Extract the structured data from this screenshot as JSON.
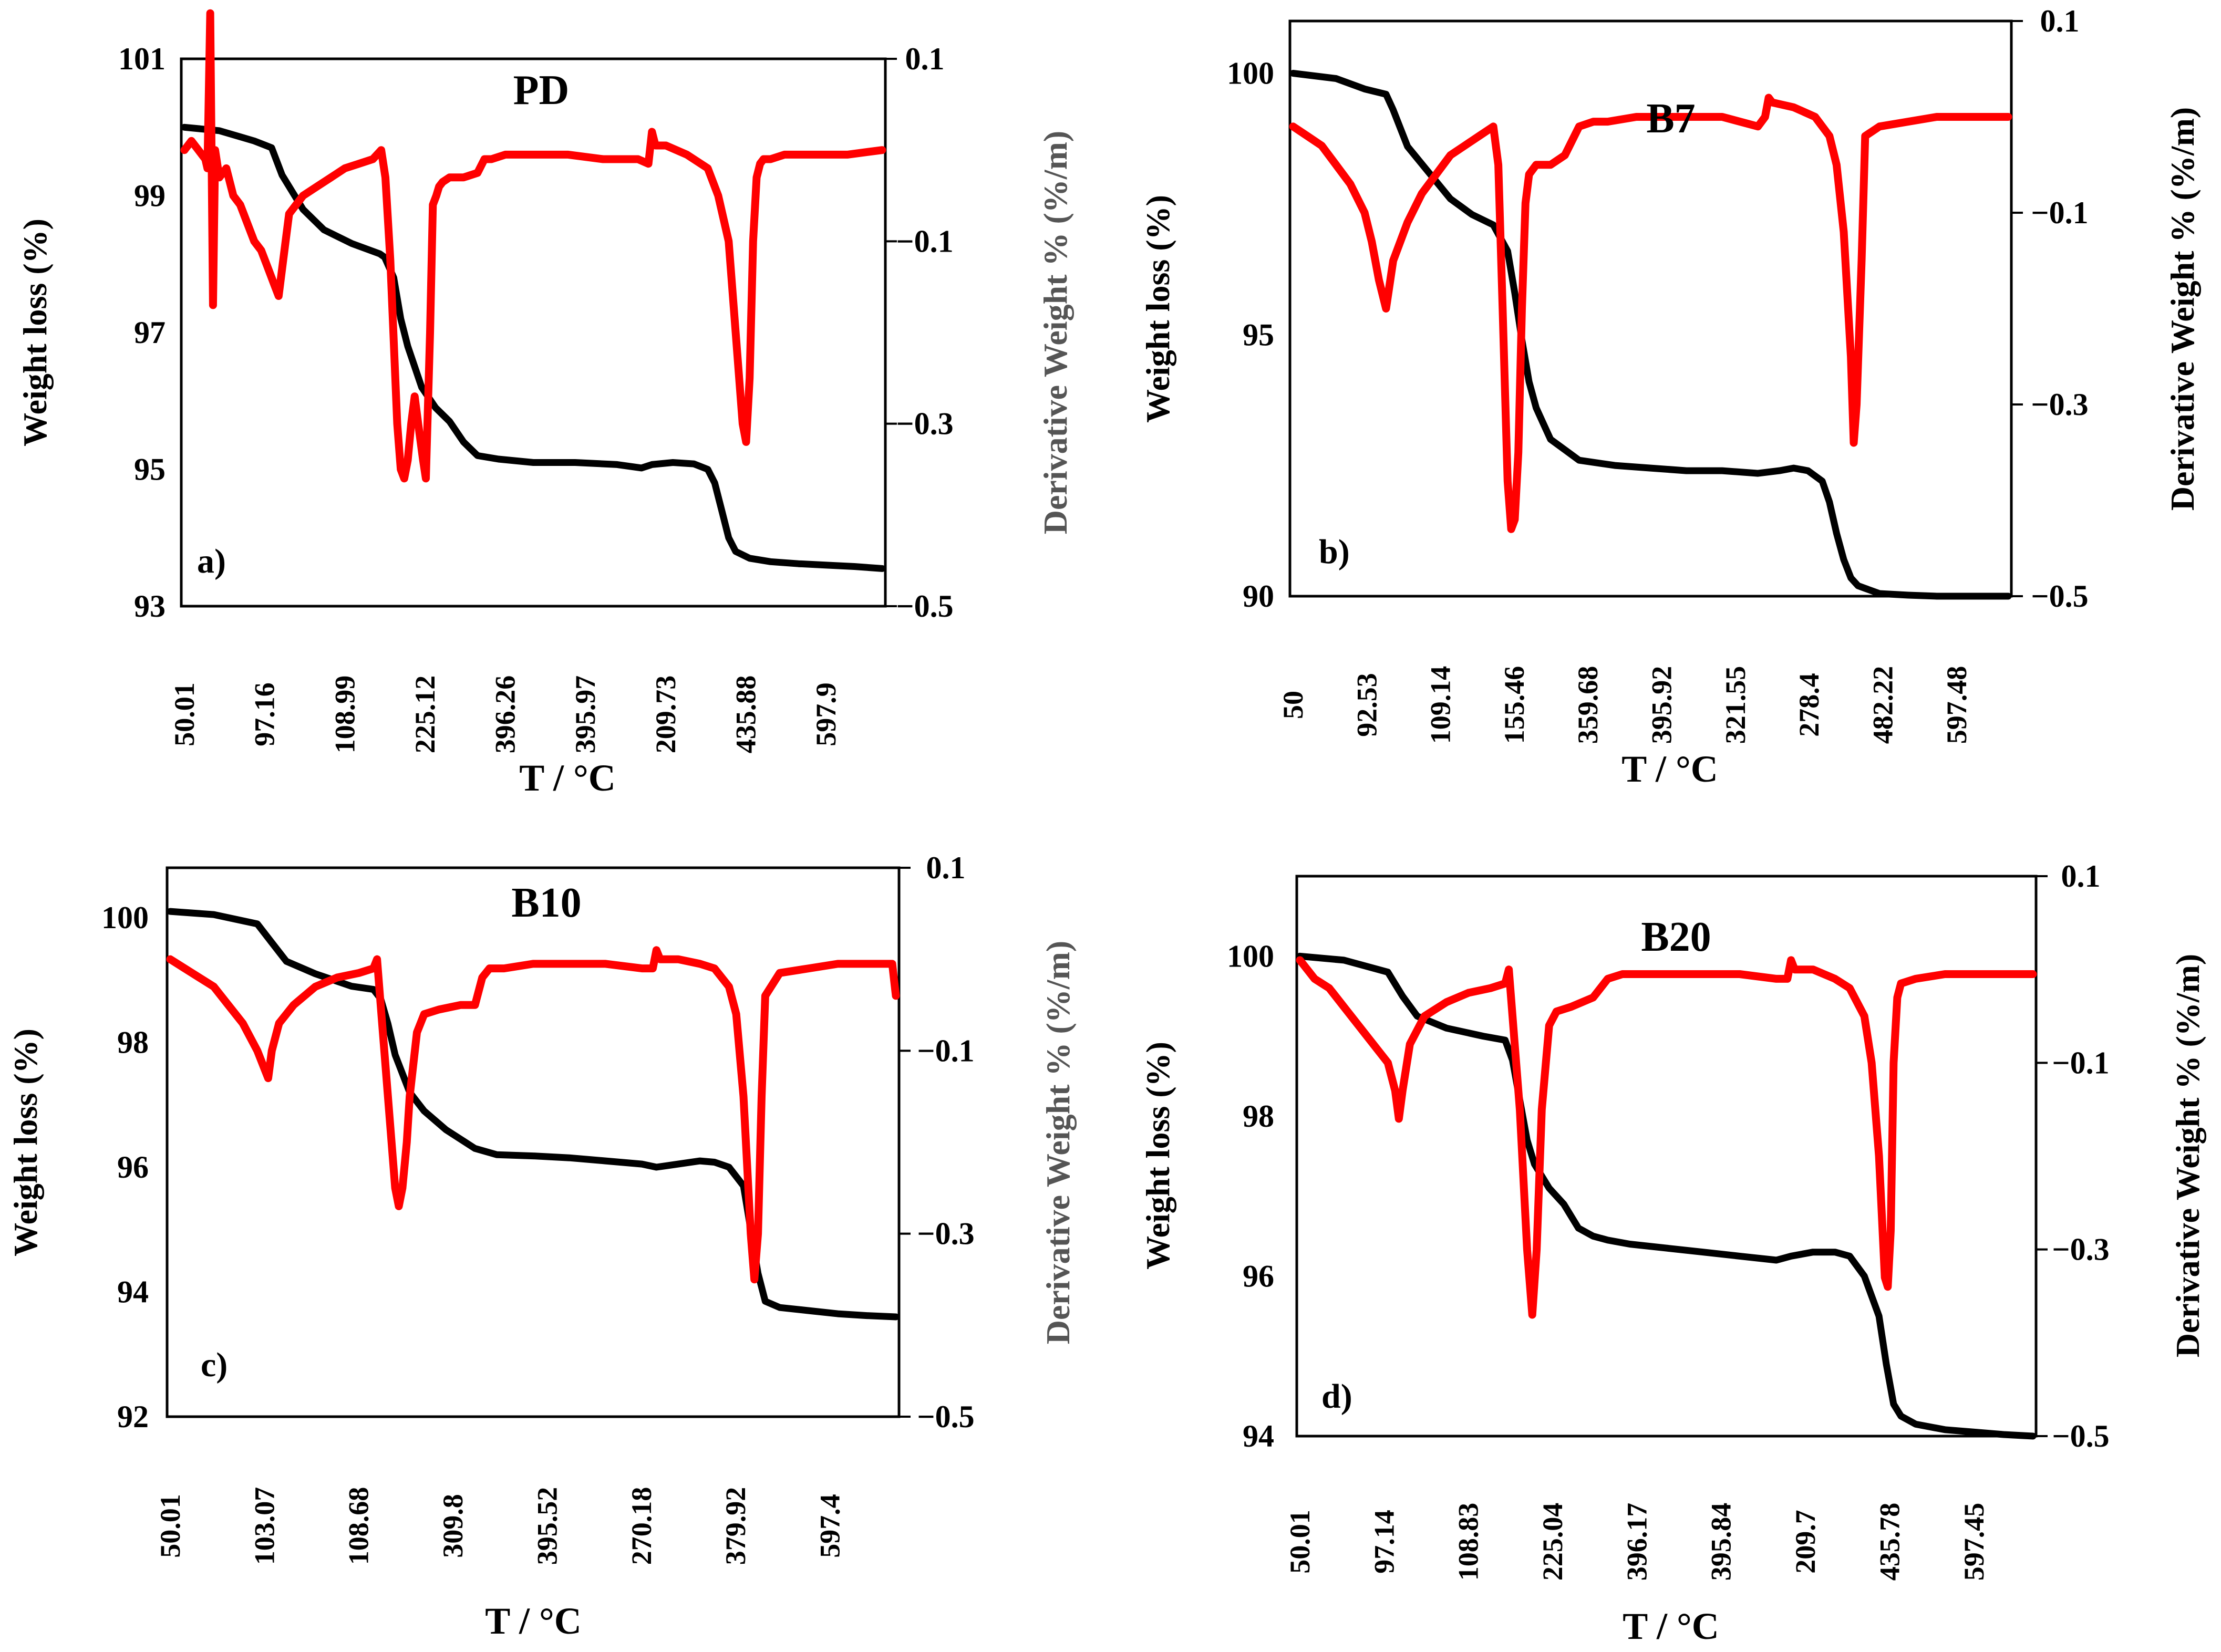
{
  "colors": {
    "weight_loss_series": "#000000",
    "derivative_series": "#ff0000",
    "frame": "#000000",
    "right_axis_title_gray": "#555555"
  },
  "chart_data": [
    {
      "type": "line",
      "panel": "a)",
      "title": "PD",
      "xlabel": "T / °C",
      "ylabel": "Weight loss (%)",
      "y2label": "Derivative Weight % (%/m)",
      "y2label_color": "gray",
      "x_tick_labels": [
        "50.01",
        "97.16",
        "108.99",
        "225.12",
        "396.26",
        "395.97",
        "209.73",
        "435.88",
        "597.9"
      ],
      "ylim": [
        93,
        101
      ],
      "y_ticks": [
        101,
        99,
        97,
        95,
        93
      ],
      "y2lim": [
        -0.5,
        0.1
      ],
      "y2_ticks": [
        "0.1",
        "−0.1",
        "−0.3",
        "−0.5"
      ],
      "x_range": [
        0,
        100
      ],
      "series": [
        {
          "name": "Weight loss",
          "axis": "left",
          "color": "#000000",
          "x": [
            0,
            5,
            10,
            12.5,
            14,
            17,
            20,
            24,
            28,
            28.7,
            30,
            31,
            32,
            34,
            36,
            38,
            40,
            42,
            45,
            50,
            56,
            62,
            65.5,
            67,
            70,
            73,
            75,
            76,
            77,
            78,
            79,
            81,
            84,
            88,
            92,
            96,
            100
          ],
          "y": [
            100,
            99.95,
            99.8,
            99.7,
            99.3,
            98.8,
            98.5,
            98.3,
            98.15,
            98.1,
            97.8,
            97.2,
            96.8,
            96.2,
            95.9,
            95.7,
            95.4,
            95.2,
            95.15,
            95.1,
            95.1,
            95.07,
            95.02,
            95.07,
            95.1,
            95.08,
            95.0,
            94.8,
            94.4,
            94.0,
            93.8,
            93.7,
            93.65,
            93.62,
            93.6,
            93.58,
            93.55
          ]
        },
        {
          "name": "Derivative weight",
          "axis": "right",
          "color": "#ff0000",
          "x": [
            0,
            1,
            2,
            3,
            3.3,
            3.7,
            4.1,
            4.4,
            5,
            6,
            7,
            8,
            9,
            10,
            11,
            12,
            13,
            13.5,
            14,
            15,
            17,
            19,
            21,
            23,
            25,
            27,
            28.2,
            28.8,
            29.5,
            30.5,
            31,
            31.5,
            32,
            32.5,
            33,
            33.5,
            34.2,
            34.6,
            35.2,
            35.6,
            36.1,
            36.5,
            37,
            38,
            40,
            42,
            43,
            44,
            46,
            50,
            55,
            60,
            65,
            66.5,
            67,
            67.5,
            69,
            72,
            75,
            76.5,
            78,
            79,
            80,
            80.5,
            81,
            81.5,
            82,
            82.5,
            83,
            84,
            86,
            90,
            95,
            100
          ],
          "y": [
            0.0,
            0.01,
            0.0,
            -0.01,
            -0.02,
            0.15,
            -0.17,
            0.0,
            -0.03,
            -0.02,
            -0.05,
            -0.06,
            -0.08,
            -0.1,
            -0.11,
            -0.13,
            -0.15,
            -0.16,
            -0.13,
            -0.07,
            -0.05,
            -0.04,
            -0.03,
            -0.02,
            -0.015,
            -0.01,
            0.0,
            -0.03,
            -0.12,
            -0.3,
            -0.35,
            -0.36,
            -0.34,
            -0.3,
            -0.27,
            -0.3,
            -0.34,
            -0.36,
            -0.2,
            -0.06,
            -0.05,
            -0.04,
            -0.035,
            -0.03,
            -0.03,
            -0.025,
            -0.01,
            -0.01,
            -0.005,
            -0.005,
            -0.005,
            -0.01,
            -0.01,
            -0.015,
            0.02,
            0.005,
            0.005,
            -0.005,
            -0.02,
            -0.05,
            -0.1,
            -0.2,
            -0.3,
            -0.32,
            -0.25,
            -0.1,
            -0.03,
            -0.015,
            -0.01,
            -0.01,
            -0.005,
            -0.005,
            -0.005,
            0.0
          ]
        }
      ]
    },
    {
      "type": "line",
      "panel": "b)",
      "title": "B7",
      "xlabel": "T / °C",
      "ylabel": "Weight loss (%)",
      "y2label": "Derivative Weight % (%/m)",
      "y2label_color": "black",
      "x_tick_labels": [
        "50",
        "92.53",
        "109.14",
        "155.46",
        "359.68",
        "395.92",
        "321.55",
        "278.4",
        "482.22",
        "597.48"
      ],
      "ylim": [
        90,
        101
      ],
      "y_ticks": [
        100,
        95,
        90
      ],
      "y2lim": [
        -0.5,
        0.1
      ],
      "y2_ticks": [
        "0.1",
        "−0.1",
        "−0.3",
        "−0.5"
      ],
      "x_range": [
        0,
        100
      ],
      "series": [
        {
          "name": "Weight loss",
          "axis": "left",
          "color": "#000000",
          "x": [
            0,
            6,
            10,
            13,
            14,
            16,
            19,
            22,
            25,
            28,
            30,
            31,
            32,
            33,
            34,
            35,
            36,
            38,
            40,
            45,
            50,
            55,
            60,
            65,
            68,
            70,
            72,
            74,
            75,
            76,
            77,
            78,
            79,
            80,
            82,
            86,
            90,
            100
          ],
          "y": [
            100,
            99.9,
            99.7,
            99.6,
            99.3,
            98.6,
            98.1,
            97.6,
            97.3,
            97.1,
            96.6,
            95.8,
            94.9,
            94.1,
            93.6,
            93.3,
            93.0,
            92.8,
            92.6,
            92.5,
            92.45,
            92.4,
            92.4,
            92.35,
            92.4,
            92.45,
            92.4,
            92.2,
            91.8,
            91.2,
            90.7,
            90.35,
            90.2,
            90.15,
            90.05,
            90.02,
            90.0,
            90.0
          ]
        },
        {
          "name": "Derivative weight",
          "axis": "right",
          "color": "#ff0000",
          "x": [
            0,
            2,
            4,
            6,
            8,
            10,
            11,
            12,
            13,
            14,
            16,
            18,
            20,
            22,
            24,
            26,
            28,
            28.7,
            29.3,
            30,
            30.5,
            31,
            31.5,
            32,
            32.5,
            33,
            34,
            36,
            38,
            40,
            42,
            44,
            48,
            54,
            60,
            65,
            66,
            66.5,
            67,
            70,
            73,
            75,
            76,
            77,
            78,
            78.4,
            78.8,
            79.5,
            80,
            82,
            86,
            90,
            95,
            100
          ],
          "y": [
            -0.01,
            -0.02,
            -0.03,
            -0.05,
            -0.07,
            -0.1,
            -0.13,
            -0.17,
            -0.2,
            -0.15,
            -0.11,
            -0.08,
            -0.06,
            -0.04,
            -0.03,
            -0.02,
            -0.01,
            -0.05,
            -0.2,
            -0.38,
            -0.43,
            -0.42,
            -0.35,
            -0.2,
            -0.09,
            -0.06,
            -0.05,
            -0.05,
            -0.04,
            -0.01,
            -0.005,
            -0.005,
            0.0,
            0.0,
            0.0,
            -0.01,
            0.0,
            0.02,
            0.015,
            0.01,
            0.0,
            -0.02,
            -0.05,
            -0.12,
            -0.25,
            -0.34,
            -0.3,
            -0.15,
            -0.02,
            -0.01,
            -0.005,
            0.0,
            0.0,
            0.0
          ]
        }
      ]
    },
    {
      "type": "line",
      "panel": "c)",
      "title": "B10",
      "xlabel": "T / °C",
      "ylabel": "Weight loss (%)",
      "y2label": "Derivative Weight % (%/m)",
      "y2label_color": "gray",
      "x_tick_labels": [
        "50.01",
        "103.07",
        "108.68",
        "309.8",
        "395.52",
        "270.18",
        "379.92",
        "597.4"
      ],
      "ylim": [
        92,
        100.8
      ],
      "y_ticks": [
        100,
        98,
        96,
        94,
        92
      ],
      "y2lim": [
        -0.5,
        0.1
      ],
      "y2_ticks": [
        "0.1",
        "−0.1",
        "−0.3",
        "−0.5"
      ],
      "x_range": [
        0,
        100
      ],
      "series": [
        {
          "name": "Weight loss",
          "axis": "left",
          "color": "#000000",
          "x": [
            0,
            6,
            12,
            14,
            16,
            20,
            25,
            28,
            29,
            30,
            31,
            33,
            35,
            38,
            42,
            45,
            50,
            55,
            60,
            65,
            67,
            70,
            73,
            75,
            77,
            79,
            80,
            81,
            82,
            84,
            88,
            92,
            96,
            100
          ],
          "y": [
            100.1,
            100.05,
            99.9,
            99.6,
            99.3,
            99.1,
            98.9,
            98.85,
            98.7,
            98.3,
            97.8,
            97.2,
            96.9,
            96.6,
            96.3,
            96.2,
            96.18,
            96.15,
            96.1,
            96.05,
            96.0,
            96.05,
            96.1,
            96.08,
            96.0,
            95.7,
            95.0,
            94.3,
            93.85,
            93.75,
            93.7,
            93.65,
            93.62,
            93.6
          ]
        },
        {
          "name": "Derivative weight",
          "axis": "right",
          "color": "#ff0000",
          "x": [
            0,
            2,
            4,
            6,
            8,
            10,
            12,
            13,
            13.5,
            14,
            15,
            17,
            20,
            23,
            26,
            28,
            28.5,
            29,
            30,
            31,
            31.5,
            32,
            32.6,
            33,
            34,
            35,
            37,
            40,
            42,
            43,
            44,
            46,
            50,
            55,
            60,
            65,
            66.5,
            67,
            67.5,
            70,
            73,
            75,
            77,
            78,
            79,
            80,
            80.5,
            81,
            81.5,
            82,
            84,
            88,
            92,
            96,
            99.5,
            100
          ],
          "y": [
            0.0,
            -0.01,
            -0.02,
            -0.03,
            -0.05,
            -0.07,
            -0.1,
            -0.12,
            -0.13,
            -0.1,
            -0.07,
            -0.05,
            -0.03,
            -0.02,
            -0.015,
            -0.01,
            0.0,
            -0.05,
            -0.15,
            -0.25,
            -0.27,
            -0.25,
            -0.2,
            -0.15,
            -0.08,
            -0.06,
            -0.055,
            -0.05,
            -0.05,
            -0.02,
            -0.01,
            -0.01,
            -0.005,
            -0.005,
            -0.005,
            -0.01,
            -0.01,
            0.01,
            0.0,
            0.0,
            -0.005,
            -0.01,
            -0.03,
            -0.06,
            -0.15,
            -0.3,
            -0.35,
            -0.3,
            -0.15,
            -0.04,
            -0.015,
            -0.01,
            -0.005,
            -0.005,
            -0.005,
            -0.04
          ]
        }
      ]
    },
    {
      "type": "line",
      "panel": "d)",
      "title": "B20",
      "xlabel": "T / °C",
      "ylabel": "Weight loss (%)",
      "y2label": "Derivative Weight % (%/m)",
      "y2label_color": "black",
      "x_tick_labels": [
        "50.01",
        "97.14",
        "108.83",
        "225.04",
        "396.17",
        "395.84",
        "209.7",
        "435.78",
        "597.45"
      ],
      "ylim": [
        94,
        101
      ],
      "y_ticks": [
        100,
        98,
        96,
        94
      ],
      "y2lim": [
        -0.5,
        0.1
      ],
      "y2_ticks": [
        "0.1",
        "−0.1",
        "−0.3",
        "−0.5"
      ],
      "x_range": [
        0,
        100
      ],
      "series": [
        {
          "name": "Weight loss",
          "axis": "left",
          "color": "#000000",
          "x": [
            0,
            6,
            12,
            14,
            16,
            20,
            25,
            28,
            29,
            30,
            31,
            32,
            34,
            36,
            38,
            40,
            42,
            45,
            50,
            55,
            60,
            65,
            67,
            70,
            73,
            75,
            77,
            79,
            80,
            81,
            82,
            84,
            88,
            92,
            96,
            100
          ],
          "y": [
            100,
            99.95,
            99.8,
            99.5,
            99.25,
            99.1,
            99.0,
            98.95,
            98.7,
            98.2,
            97.7,
            97.4,
            97.1,
            96.9,
            96.6,
            96.5,
            96.45,
            96.4,
            96.35,
            96.3,
            96.25,
            96.2,
            96.25,
            96.3,
            96.3,
            96.25,
            96.0,
            95.5,
            94.9,
            94.4,
            94.25,
            94.15,
            94.08,
            94.05,
            94.02,
            94.0
          ]
        },
        {
          "name": "Derivative weight",
          "axis": "right",
          "color": "#ff0000",
          "x": [
            0,
            2,
            4,
            6,
            8,
            10,
            12,
            13,
            13.5,
            14,
            15,
            17,
            20,
            23,
            26,
            28,
            28.5,
            29,
            30,
            31,
            31.7,
            32.3,
            33,
            34,
            35,
            37,
            40,
            42,
            44,
            46,
            50,
            55,
            60,
            65,
            66.5,
            67,
            67.5,
            70,
            73,
            75,
            77,
            78,
            79,
            79.8,
            80.2,
            80.6,
            81,
            81.5,
            82,
            84,
            88,
            92,
            96,
            100
          ],
          "y": [
            0.01,
            -0.01,
            -0.02,
            -0.04,
            -0.06,
            -0.08,
            -0.1,
            -0.13,
            -0.16,
            -0.13,
            -0.08,
            -0.05,
            -0.035,
            -0.025,
            -0.02,
            -0.015,
            0.0,
            -0.05,
            -0.15,
            -0.3,
            -0.37,
            -0.3,
            -0.15,
            -0.06,
            -0.045,
            -0.04,
            -0.03,
            -0.01,
            -0.005,
            -0.005,
            -0.005,
            -0.005,
            -0.005,
            -0.01,
            -0.01,
            0.01,
            0.0,
            0.0,
            -0.01,
            -0.02,
            -0.05,
            -0.1,
            -0.2,
            -0.33,
            -0.34,
            -0.28,
            -0.1,
            -0.03,
            -0.015,
            -0.01,
            -0.005,
            -0.005,
            -0.005,
            -0.005
          ]
        }
      ]
    }
  ]
}
